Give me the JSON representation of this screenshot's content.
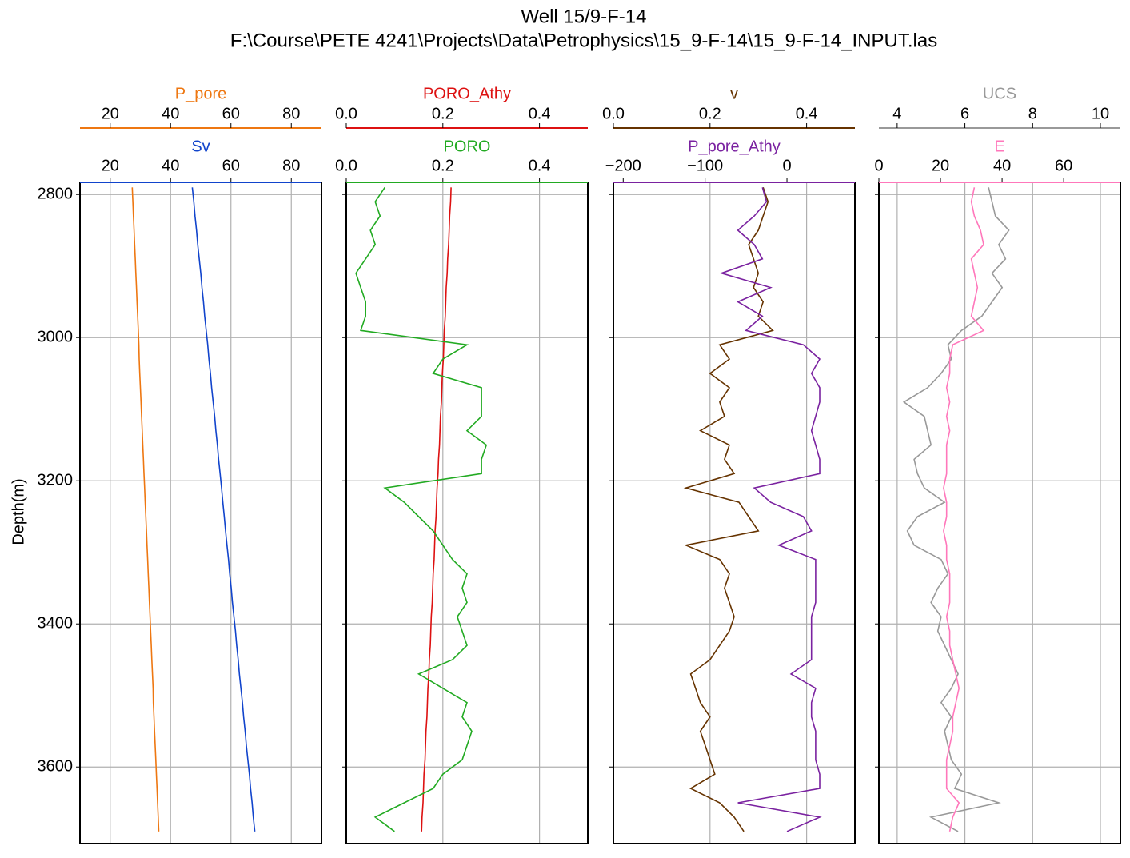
{
  "chart_data": {
    "type": "line",
    "title": "Well 15/9-F-14",
    "subtitle": "F:\\Course\\PETE 4241\\Projects\\Data\\Petrophysics\\15_9-F-14\\15_9-F-14_INPUT.las",
    "y_label": "Depth(m)",
    "ylim": [
      3707,
      2783
    ],
    "yticks": [
      2800,
      3000,
      3200,
      3400,
      3600
    ],
    "grid": true,
    "depth": [
      2790,
      2810,
      2830,
      2850,
      2870,
      2890,
      2910,
      2930,
      2950,
      2970,
      2990,
      3010,
      3030,
      3050,
      3070,
      3090,
      3110,
      3130,
      3150,
      3170,
      3190,
      3210,
      3230,
      3250,
      3270,
      3290,
      3310,
      3330,
      3350,
      3370,
      3390,
      3410,
      3430,
      3450,
      3470,
      3490,
      3510,
      3530,
      3550,
      3570,
      3590,
      3610,
      3630,
      3650,
      3670,
      3690
    ],
    "tracks": [
      {
        "series": [
          {
            "name": "P_pore",
            "color": "#ee7711",
            "xlim": [
              10,
              90
            ],
            "xticks": [
              20,
              40,
              60,
              80
            ],
            "values": [
              27.3,
              27.5,
              27.7,
              27.9,
              28.1,
              28.3,
              28.5,
              28.7,
              28.9,
              29.1,
              29.3,
              29.5,
              29.6,
              29.8,
              30.0,
              30.2,
              30.4,
              30.6,
              30.8,
              31.0,
              31.2,
              31.4,
              31.6,
              31.8,
              32.0,
              32.2,
              32.4,
              32.6,
              32.8,
              33.0,
              33.2,
              33.4,
              33.6,
              33.8,
              34.0,
              34.2,
              34.3,
              34.5,
              34.7,
              34.9,
              35.1,
              35.3,
              35.5,
              35.7,
              35.9,
              36.1
            ]
          },
          {
            "name": "Sv",
            "color": "#1144cc",
            "xlim": [
              10,
              90
            ],
            "xticks": [
              20,
              40,
              60,
              80
            ],
            "values": [
              47.2,
              47.7,
              48.1,
              48.6,
              49.0,
              49.5,
              50.0,
              50.4,
              50.9,
              51.3,
              51.8,
              52.3,
              52.7,
              53.2,
              53.6,
              54.1,
              54.6,
              55.0,
              55.5,
              55.9,
              56.4,
              56.9,
              57.3,
              57.8,
              58.2,
              58.7,
              59.2,
              59.6,
              60.1,
              60.5,
              61.0,
              61.5,
              61.9,
              62.4,
              62.8,
              63.3,
              63.8,
              64.2,
              64.7,
              65.1,
              65.6,
              66.1,
              66.5,
              67.0,
              67.4,
              67.9
            ]
          }
        ]
      },
      {
        "series": [
          {
            "name": "PORO_Athy",
            "color": "#dd1111",
            "xlim": [
              0,
              0.5
            ],
            "xticks": [
              {
                "value": 0,
                "label": "0.0"
              },
              0.2,
              0.4
            ],
            "values": [
              0.217,
              0.216,
              0.214,
              0.213,
              0.212,
              0.21,
              0.209,
              0.207,
              0.206,
              0.205,
              0.203,
              0.202,
              0.201,
              0.199,
              0.198,
              0.197,
              0.195,
              0.194,
              0.193,
              0.191,
              0.19,
              0.188,
              0.187,
              0.186,
              0.184,
              0.183,
              0.182,
              0.18,
              0.179,
              0.178,
              0.176,
              0.175,
              0.174,
              0.172,
              0.171,
              0.169,
              0.168,
              0.167,
              0.165,
              0.164,
              0.163,
              0.161,
              0.16,
              0.159,
              0.157,
              0.156
            ]
          },
          {
            "name": "PORO",
            "color": "#22aa22",
            "xlim": [
              0,
              0.5
            ],
            "xticks": [
              {
                "value": 0,
                "label": "0.0"
              },
              0.2,
              0.4
            ],
            "values": [
              0.08,
              0.06,
              0.07,
              0.05,
              0.06,
              0.04,
              0.02,
              0.03,
              0.04,
              0.04,
              0.03,
              0.25,
              0.2,
              0.18,
              0.28,
              0.28,
              0.28,
              0.25,
              0.29,
              0.28,
              0.28,
              0.08,
              0.12,
              0.15,
              0.18,
              0.2,
              0.22,
              0.25,
              0.24,
              0.25,
              0.23,
              0.24,
              0.25,
              0.22,
              0.15,
              0.2,
              0.25,
              0.24,
              0.26,
              0.25,
              0.24,
              0.2,
              0.18,
              0.12,
              0.06,
              0.1
            ]
          }
        ]
      },
      {
        "series": [
          {
            "name": "v",
            "color": "#663300",
            "xlim": [
              0,
              0.5
            ],
            "xticks": [
              {
                "value": 0,
                "label": "0.0"
              },
              0.2,
              0.4
            ],
            "values": [
              0.31,
              0.32,
              0.31,
              0.3,
              0.28,
              0.29,
              0.3,
              0.29,
              0.31,
              0.3,
              0.33,
              0.22,
              0.24,
              0.2,
              0.24,
              0.22,
              0.23,
              0.18,
              0.24,
              0.23,
              0.25,
              0.15,
              0.26,
              0.28,
              0.3,
              0.15,
              0.22,
              0.24,
              0.23,
              0.24,
              0.25,
              0.24,
              0.22,
              0.2,
              0.16,
              0.17,
              0.18,
              0.2,
              0.18,
              0.19,
              0.2,
              0.21,
              0.16,
              0.22,
              0.25,
              0.27
            ]
          },
          {
            "name": "P_pore_Athy",
            "color": "#7a22a0",
            "xlim": [
              -212,
              83
            ],
            "xticks": [
              {
                "value": -200,
                "label": "−200"
              },
              {
                "value": -100,
                "label": "−100"
              },
              0
            ],
            "values": [
              -30,
              -25,
              -40,
              -60,
              -40,
              -30,
              -80,
              -20,
              -60,
              -30,
              -50,
              20,
              40,
              30,
              40,
              40,
              35,
              30,
              35,
              40,
              40,
              -40,
              -20,
              20,
              30,
              -10,
              35,
              35,
              35,
              35,
              30,
              30,
              30,
              30,
              5,
              35,
              30,
              30,
              35,
              35,
              35,
              40,
              40,
              -60,
              40,
              0
            ]
          }
        ]
      },
      {
        "series": [
          {
            "name": "UCS",
            "color": "#999999",
            "xlim": [
              3.46,
              10.59
            ],
            "xticks": [
              4,
              6,
              8,
              10
            ],
            "values": [
              6.7,
              6.8,
              6.9,
              7.3,
              7.0,
              7.2,
              6.8,
              7.1,
              6.8,
              6.5,
              5.9,
              5.5,
              5.6,
              5.3,
              4.9,
              4.2,
              4.8,
              4.9,
              5.0,
              4.5,
              4.6,
              4.8,
              5.4,
              4.6,
              4.3,
              4.5,
              5.3,
              5.5,
              5.2,
              5.0,
              5.3,
              5.2,
              5.4,
              5.6,
              5.8,
              5.6,
              5.3,
              5.6,
              5.4,
              5.5,
              5.6,
              5.9,
              5.7,
              7.0,
              5.0,
              5.8
            ]
          },
          {
            "name": "E",
            "color": "#ff77bb",
            "xlim": [
              0,
              78.4
            ],
            "xticks": [
              0,
              20,
              40,
              60
            ],
            "values": [
              31,
              30,
              31,
              33,
              34,
              30,
              31,
              32,
              31,
              30,
              34,
              24,
              23,
              23,
              22,
              23,
              22,
              23,
              22,
              22,
              22,
              21,
              22,
              22,
              21,
              22,
              22,
              23,
              23,
              23,
              22,
              23,
              23,
              24,
              25,
              26,
              25,
              24,
              24,
              23,
              22,
              22,
              22,
              26,
              24,
              23
            ]
          }
        ]
      }
    ]
  }
}
